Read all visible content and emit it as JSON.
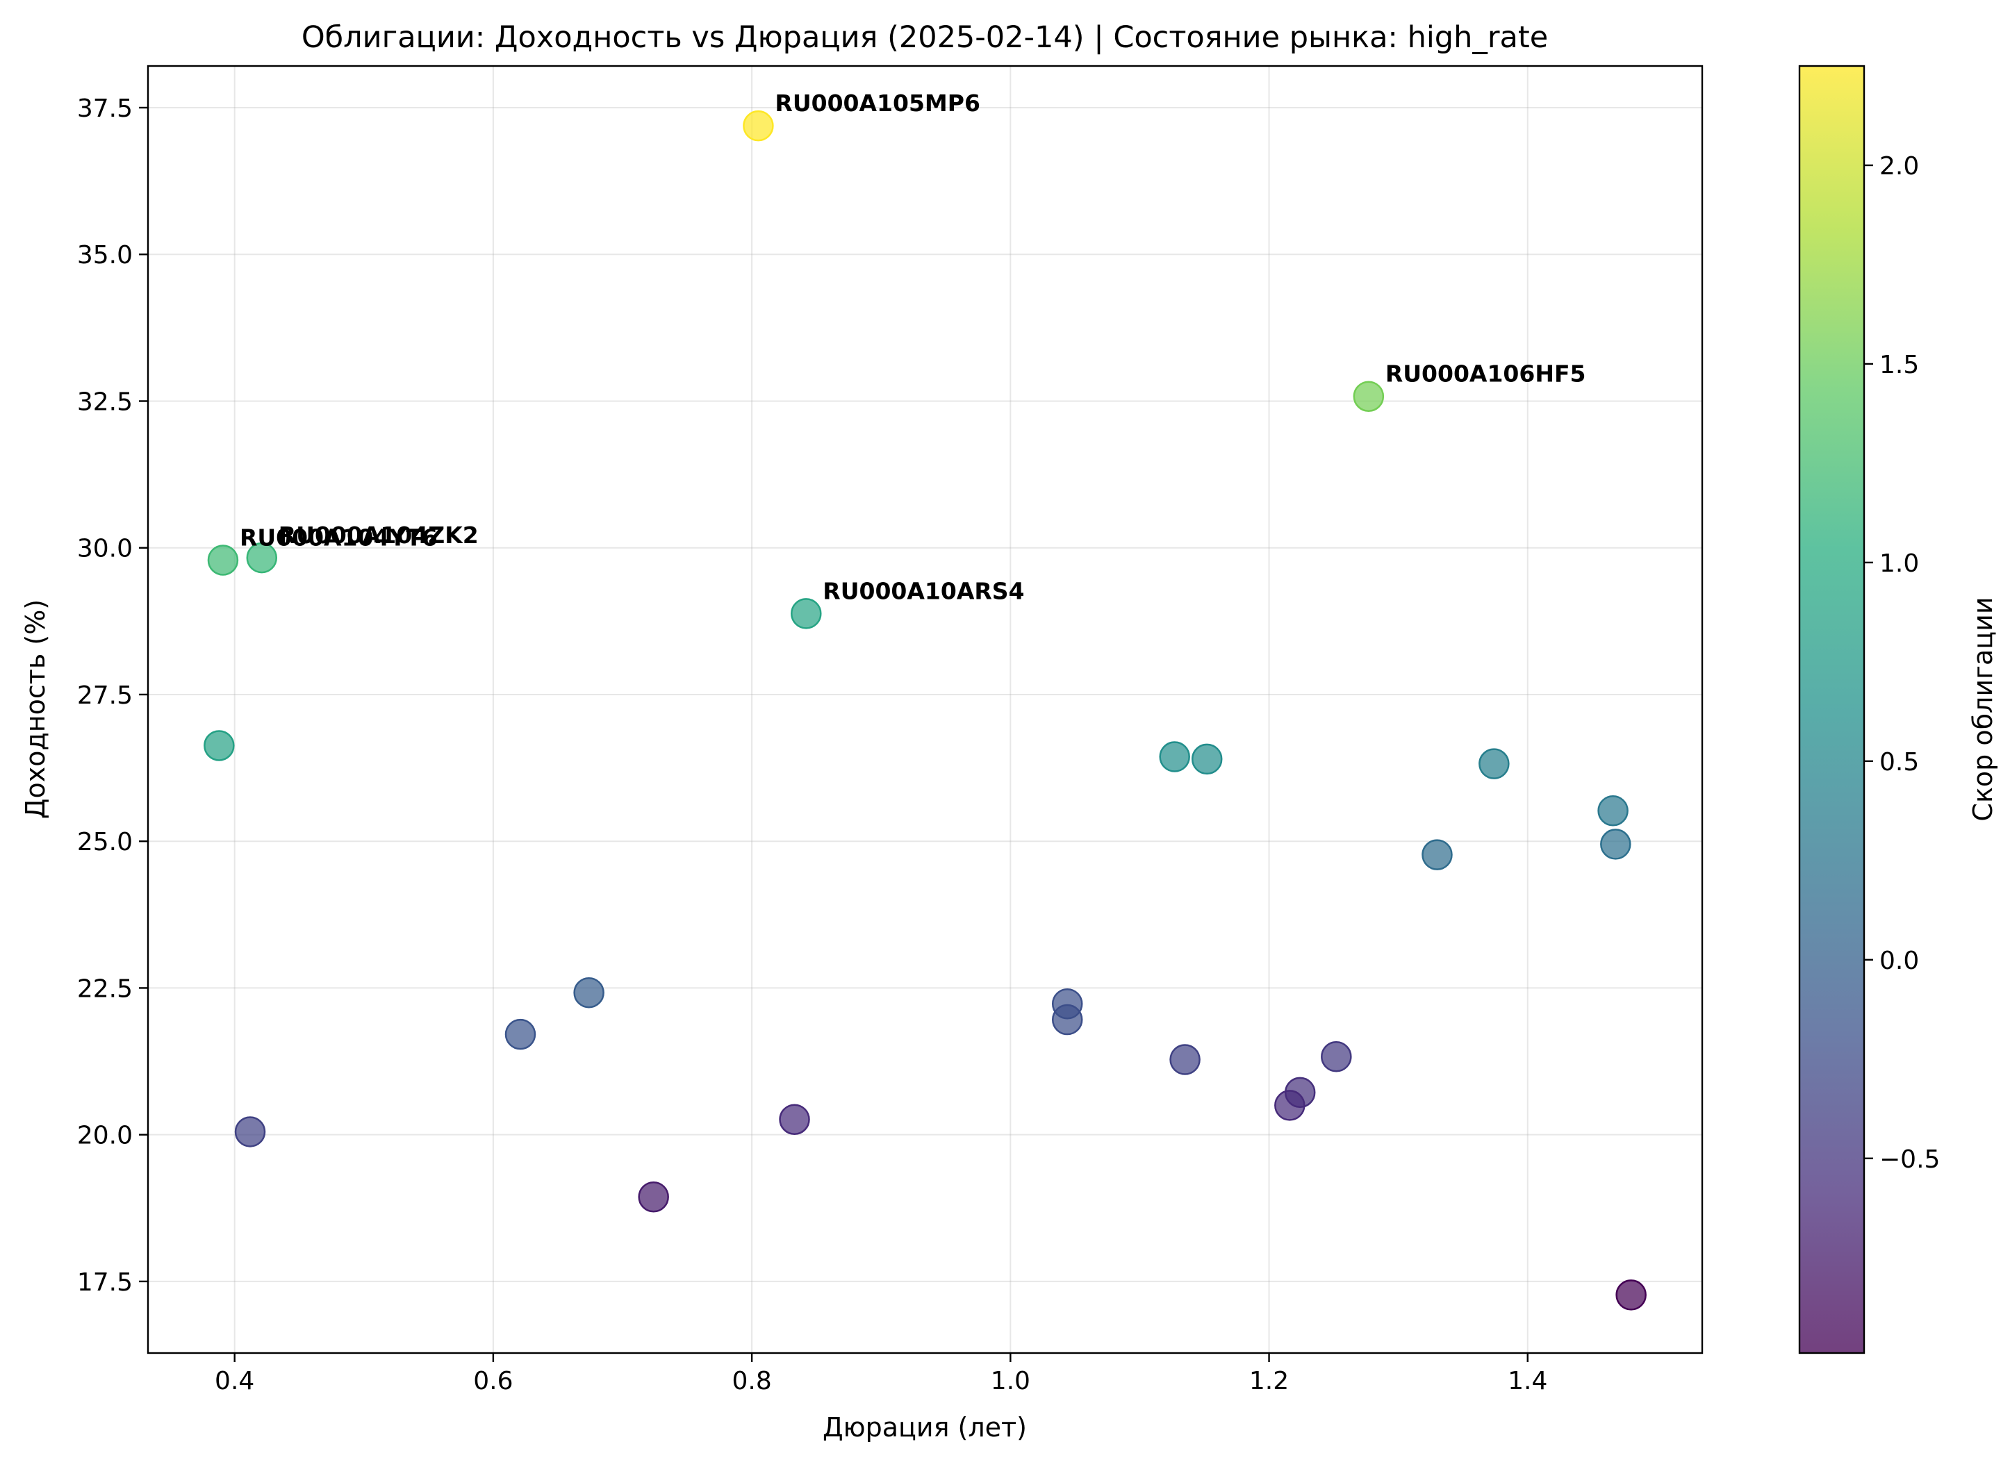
{
  "chart_data": {
    "type": "scatter",
    "title": "Облигации: Доходность vs Дюрация (2025-02-14) | Состояние рынка: high_rate",
    "xlabel": "Дюрация (лет)",
    "ylabel": "Доходность (%)",
    "xlim": [
      0.333,
      1.535
    ],
    "ylim": [
      16.28,
      38.21
    ],
    "xticks": [
      0.4,
      0.6,
      0.8,
      1.0,
      1.2,
      1.4
    ],
    "xtick_labels": [
      "0.4",
      "0.6",
      "0.8",
      "1.0",
      "1.2",
      "1.4"
    ],
    "yticks": [
      17.5,
      20.0,
      22.5,
      25.0,
      27.5,
      30.0,
      32.5,
      35.0,
      37.5
    ],
    "ytick_labels": [
      "17.5",
      "20.0",
      "22.5",
      "25.0",
      "27.5",
      "30.0",
      "32.5",
      "35.0",
      "37.5"
    ],
    "grid": true,
    "colormap": "viridis",
    "colorbar": {
      "label": "Скор облигации",
      "range": [
        -0.99,
        2.25
      ],
      "ticks": [
        -0.5,
        0.0,
        0.5,
        1.0,
        1.5,
        2.0
      ],
      "tick_labels": [
        "−0.5",
        "0.0",
        "0.5",
        "1.0",
        "1.5",
        "2.0"
      ]
    },
    "points": [
      {
        "x": 0.805,
        "y": 37.19,
        "score": 2.25,
        "label": "RU000A105MP6"
      },
      {
        "x": 1.277,
        "y": 32.58,
        "score": 1.55,
        "label": "RU000A106HF5"
      },
      {
        "x": 0.391,
        "y": 29.79,
        "score": 1.2,
        "label": "RU000A104YT6"
      },
      {
        "x": 0.421,
        "y": 29.83,
        "score": 1.15,
        "label": "RU000A104ZK2"
      },
      {
        "x": 0.842,
        "y": 28.88,
        "score": 0.9,
        "label": "RU000A10ARS4"
      },
      {
        "x": 0.388,
        "y": 26.63,
        "score": 0.85,
        "label": ""
      },
      {
        "x": 1.127,
        "y": 26.44,
        "score": 0.6,
        "label": ""
      },
      {
        "x": 1.152,
        "y": 26.4,
        "score": 0.58,
        "label": ""
      },
      {
        "x": 1.374,
        "y": 26.32,
        "score": 0.4,
        "label": ""
      },
      {
        "x": 1.466,
        "y": 25.52,
        "score": 0.3,
        "label": ""
      },
      {
        "x": 1.468,
        "y": 24.95,
        "score": 0.2,
        "label": ""
      },
      {
        "x": 1.33,
        "y": 24.77,
        "score": 0.15,
        "label": ""
      },
      {
        "x": 0.674,
        "y": 22.42,
        "score": -0.05,
        "label": ""
      },
      {
        "x": 0.621,
        "y": 21.71,
        "score": -0.15,
        "label": ""
      },
      {
        "x": 1.044,
        "y": 22.23,
        "score": -0.2,
        "label": ""
      },
      {
        "x": 1.044,
        "y": 21.96,
        "score": -0.22,
        "label": ""
      },
      {
        "x": 1.135,
        "y": 21.28,
        "score": -0.35,
        "label": ""
      },
      {
        "x": 1.252,
        "y": 21.33,
        "score": -0.45,
        "label": ""
      },
      {
        "x": 0.412,
        "y": 20.05,
        "score": -0.35,
        "label": ""
      },
      {
        "x": 1.224,
        "y": 20.72,
        "score": -0.55,
        "label": ""
      },
      {
        "x": 1.216,
        "y": 20.5,
        "score": -0.6,
        "label": ""
      },
      {
        "x": 0.833,
        "y": 20.26,
        "score": -0.6,
        "label": ""
      },
      {
        "x": 0.724,
        "y": 18.94,
        "score": -0.75,
        "label": ""
      },
      {
        "x": 1.48,
        "y": 17.27,
        "score": -0.99,
        "label": ""
      }
    ]
  }
}
